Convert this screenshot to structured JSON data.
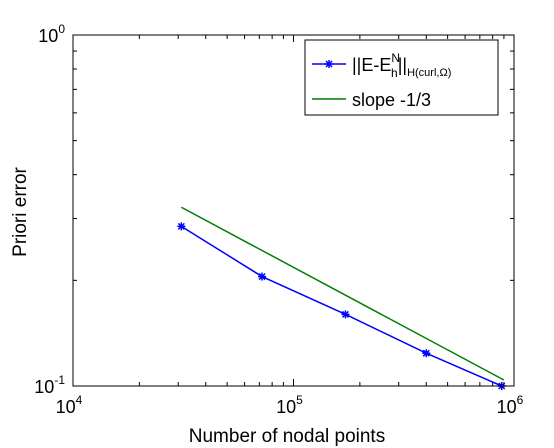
{
  "chart_data": {
    "type": "line",
    "xscale": "log",
    "yscale": "log",
    "xlim": [
      10000,
      1000000
    ],
    "ylim": [
      0.1,
      1
    ],
    "xlabel": "Number of nodal points",
    "ylabel": "Priori error",
    "x_ticks": [
      {
        "base": "10",
        "exp": "4",
        "value": 10000
      },
      {
        "base": "10",
        "exp": "5",
        "value": 100000
      },
      {
        "base": "10",
        "exp": "6",
        "value": 1000000
      }
    ],
    "y_ticks": [
      {
        "base": "10",
        "exp": "-1",
        "value": 0.1
      },
      {
        "base": "10",
        "exp": "0",
        "value": 1
      }
    ],
    "grid": false,
    "legend_position": "top-right",
    "series": [
      {
        "name": "||E-E_h^N||_{H(curl,Ω)}",
        "legend_parts": {
          "main": "||E-E",
          "sup": "N",
          "sub": "h",
          "tail": "||",
          "tail_sub": "H(curl,Ω)"
        },
        "color": "#0000ff",
        "marker": "asterisk",
        "x": [
          31000,
          72000,
          172000,
          400000,
          880000
        ],
        "y": [
          0.285,
          0.205,
          0.16,
          0.124,
          0.1
        ]
      },
      {
        "name": "slope -1/3",
        "color": "#007f00",
        "marker": "none",
        "x": [
          31000,
          900000
        ],
        "y": [
          0.323,
          0.104
        ]
      }
    ]
  }
}
